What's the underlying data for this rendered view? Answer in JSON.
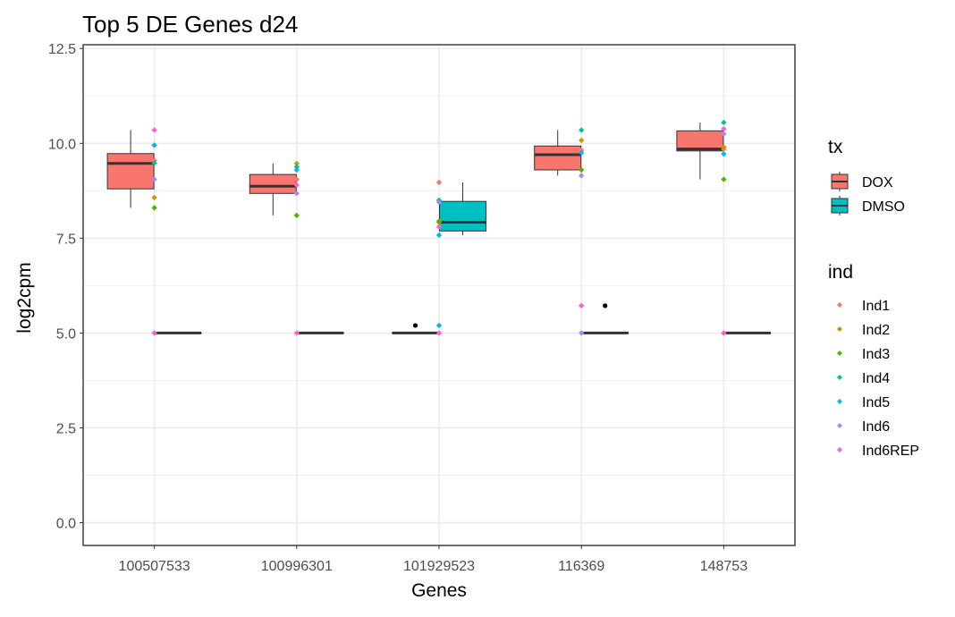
{
  "chart_data": {
    "type": "box",
    "title": "Top 5 DE Genes d24",
    "xlabel": "Genes",
    "ylabel": "log2cpm",
    "categories": [
      "100507533",
      "100996301",
      "101929523",
      "116369",
      "148753"
    ],
    "ylim": [
      -0.6,
      12.6
    ],
    "yticks": [
      0.0,
      2.5,
      5.0,
      7.5,
      10.0,
      12.5
    ],
    "ytick_labels": [
      "0.0",
      "2.5",
      "5.0",
      "7.5",
      "10.0",
      "12.5"
    ],
    "grid": true,
    "legend_position": "right",
    "tx_colors": {
      "DOX": "#F8766D",
      "DMSO": "#00BFC4"
    },
    "legends": {
      "tx": {
        "title": "tx",
        "items": [
          {
            "label": "DOX",
            "color": "#F8766D"
          },
          {
            "label": "DMSO",
            "color": "#00BFC4"
          }
        ]
      },
      "ind": {
        "title": "ind",
        "items": [
          {
            "label": "Ind1",
            "color": "#F8766D"
          },
          {
            "label": "Ind2",
            "color": "#C49A00"
          },
          {
            "label": "Ind3",
            "color": "#53B400"
          },
          {
            "label": "Ind4",
            "color": "#00C094"
          },
          {
            "label": "Ind5",
            "color": "#00B6EB"
          },
          {
            "label": "Ind6",
            "color": "#A58AFF"
          },
          {
            "label": "Ind6REP",
            "color": "#FB61D7"
          }
        ]
      }
    },
    "boxes": [
      {
        "gene": "100507533",
        "tx": "DOX",
        "min": 8.3,
        "q1": 8.8,
        "median": 9.47,
        "q3": 9.73,
        "max": 10.35
      },
      {
        "gene": "100507533",
        "tx": "DMSO",
        "min": 5.0,
        "q1": 5.0,
        "median": 5.0,
        "q3": 5.0,
        "max": 5.0
      },
      {
        "gene": "100996301",
        "tx": "DOX",
        "min": 8.1,
        "q1": 8.68,
        "median": 8.87,
        "q3": 9.18,
        "max": 9.47
      },
      {
        "gene": "100996301",
        "tx": "DMSO",
        "min": 5.0,
        "q1": 5.0,
        "median": 5.0,
        "q3": 5.0,
        "max": 5.0
      },
      {
        "gene": "101929523",
        "tx": "DOX",
        "min": 5.0,
        "q1": 5.0,
        "median": 5.0,
        "q3": 5.0,
        "max": 5.0
      },
      {
        "gene": "101929523",
        "tx": "DMSO",
        "min": 7.58,
        "q1": 7.69,
        "median": 7.92,
        "q3": 8.47,
        "max": 8.97
      },
      {
        "gene": "116369",
        "tx": "DOX",
        "min": 9.15,
        "q1": 9.3,
        "median": 9.7,
        "q3": 9.93,
        "max": 10.35
      },
      {
        "gene": "116369",
        "tx": "DMSO",
        "min": 5.0,
        "q1": 5.0,
        "median": 5.0,
        "q3": 5.0,
        "max": 5.0
      },
      {
        "gene": "148753",
        "tx": "DOX",
        "min": 9.05,
        "q1": 9.8,
        "median": 9.85,
        "q3": 10.33,
        "max": 10.55
      },
      {
        "gene": "148753",
        "tx": "DMSO",
        "min": 5.0,
        "q1": 5.0,
        "median": 5.0,
        "q3": 5.0,
        "max": 5.0
      }
    ],
    "outliers": [
      {
        "gene": "101929523",
        "tx": "DOX",
        "y": 5.2
      },
      {
        "gene": "116369",
        "tx": "DMSO",
        "y": 5.72
      }
    ],
    "points": [
      {
        "gene": "100507533",
        "ind": "Ind1",
        "y": 9.55
      },
      {
        "gene": "100507533",
        "ind": "Ind2",
        "y": 8.57
      },
      {
        "gene": "100507533",
        "ind": "Ind3",
        "y": 8.3
      },
      {
        "gene": "100507533",
        "ind": "Ind4",
        "y": 9.48
      },
      {
        "gene": "100507533",
        "ind": "Ind5",
        "y": 9.95
      },
      {
        "gene": "100507533",
        "ind": "Ind6",
        "y": 9.05
      },
      {
        "gene": "100507533",
        "ind": "Ind6REP",
        "y": 10.35
      },
      {
        "gene": "100507533",
        "ind": "Ind6REP",
        "y": 5.0
      },
      {
        "gene": "100996301",
        "ind": "Ind1",
        "y": 9.05
      },
      {
        "gene": "100996301",
        "ind": "Ind2",
        "y": 9.47
      },
      {
        "gene": "100996301",
        "ind": "Ind3",
        "y": 8.1
      },
      {
        "gene": "100996301",
        "ind": "Ind4",
        "y": 9.38
      },
      {
        "gene": "100996301",
        "ind": "Ind5",
        "y": 9.3
      },
      {
        "gene": "100996301",
        "ind": "Ind6",
        "y": 8.68
      },
      {
        "gene": "100996301",
        "ind": "Ind6REP",
        "y": 8.9
      },
      {
        "gene": "100996301",
        "ind": "Ind6REP",
        "y": 5.0
      },
      {
        "gene": "101929523",
        "ind": "Ind1",
        "y": 8.97
      },
      {
        "gene": "101929523",
        "ind": "Ind2",
        "y": 7.95
      },
      {
        "gene": "101929523",
        "ind": "Ind3",
        "y": 7.92
      },
      {
        "gene": "101929523",
        "ind": "Ind4",
        "y": 8.5
      },
      {
        "gene": "101929523",
        "ind": "Ind5",
        "y": 7.58
      },
      {
        "gene": "101929523",
        "ind": "Ind5",
        "y": 5.2
      },
      {
        "gene": "101929523",
        "ind": "Ind6",
        "y": 8.45
      },
      {
        "gene": "101929523",
        "ind": "Ind6REP",
        "y": 7.8
      },
      {
        "gene": "101929523",
        "ind": "Ind6REP",
        "y": 5.0
      },
      {
        "gene": "116369",
        "ind": "Ind1",
        "y": 9.82
      },
      {
        "gene": "116369",
        "ind": "Ind2",
        "y": 10.08
      },
      {
        "gene": "116369",
        "ind": "Ind3",
        "y": 9.3
      },
      {
        "gene": "116369",
        "ind": "Ind4",
        "y": 10.35
      },
      {
        "gene": "116369",
        "ind": "Ind5",
        "y": 9.75
      },
      {
        "gene": "116369",
        "ind": "Ind6",
        "y": 9.15
      },
      {
        "gene": "116369",
        "ind": "Ind6",
        "y": 5.0
      },
      {
        "gene": "116369",
        "ind": "Ind6REP",
        "y": 5.72
      },
      {
        "gene": "148753",
        "ind": "Ind1",
        "y": 9.85
      },
      {
        "gene": "148753",
        "ind": "Ind2",
        "y": 9.9
      },
      {
        "gene": "148753",
        "ind": "Ind3",
        "y": 9.05
      },
      {
        "gene": "148753",
        "ind": "Ind4",
        "y": 10.55
      },
      {
        "gene": "148753",
        "ind": "Ind5",
        "y": 9.72
      },
      {
        "gene": "148753",
        "ind": "Ind6",
        "y": 10.25
      },
      {
        "gene": "148753",
        "ind": "Ind6REP",
        "y": 10.38
      },
      {
        "gene": "148753",
        "ind": "Ind6REP",
        "y": 5.0
      }
    ]
  }
}
